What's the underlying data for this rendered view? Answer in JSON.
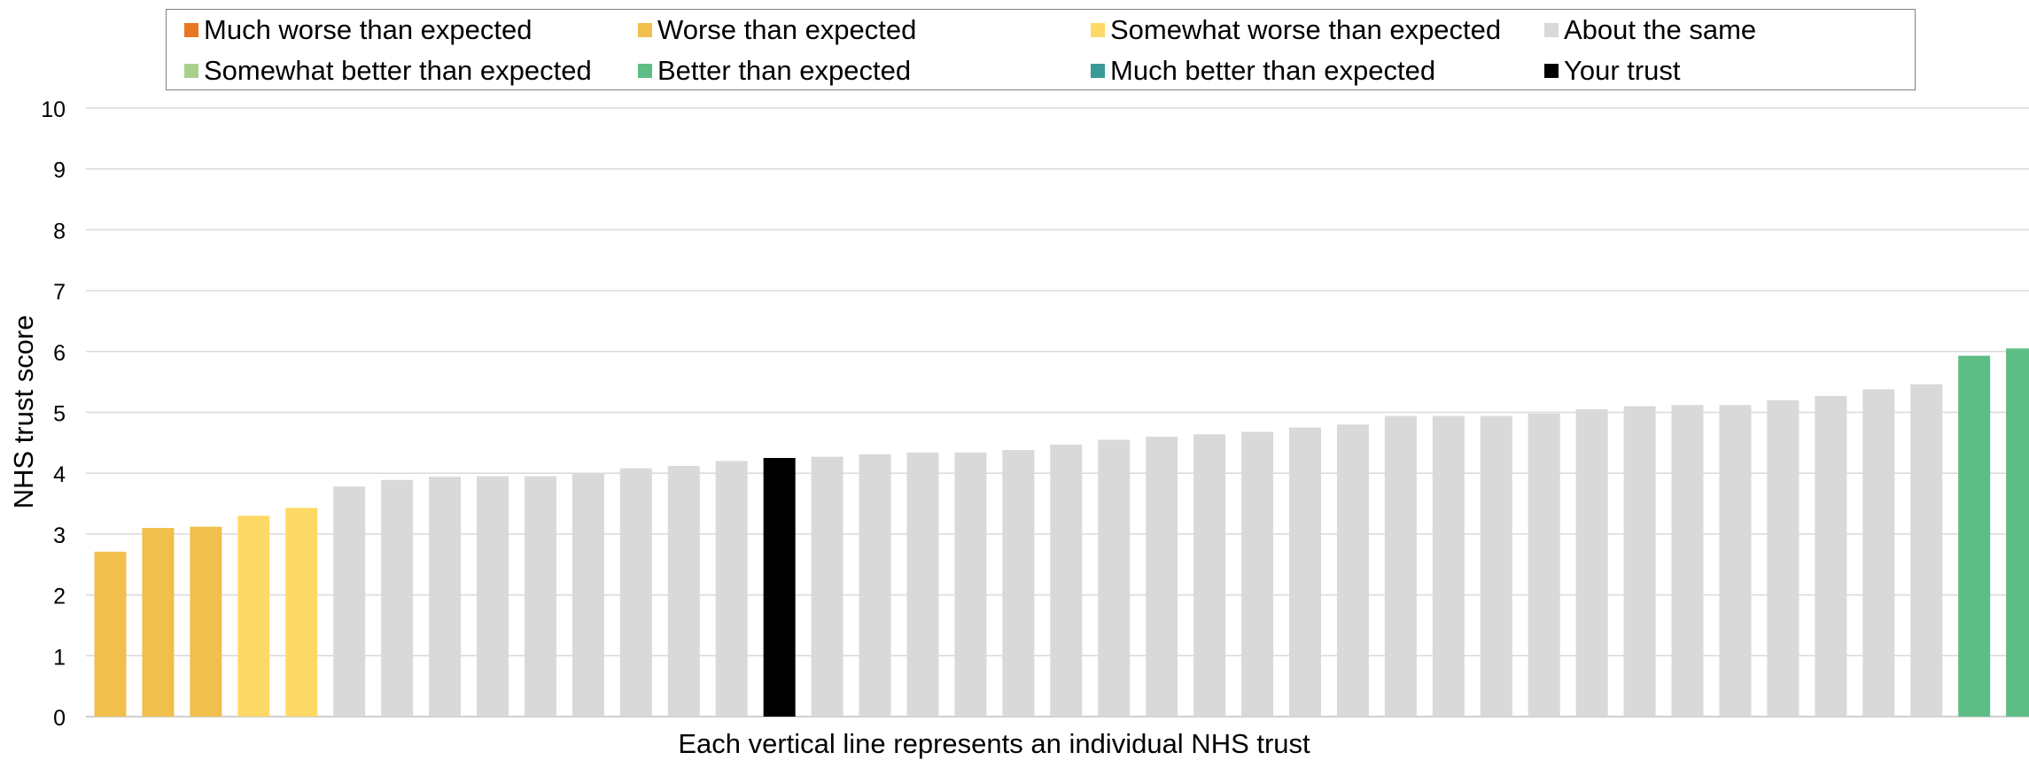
{
  "chart_data": {
    "type": "bar",
    "xlabel": "Each vertical line represents an individual NHS trust",
    "ylabel": "NHS trust score",
    "ylim": [
      0,
      10
    ],
    "yticks": [
      0,
      1,
      2,
      3,
      4,
      5,
      6,
      7,
      8,
      9,
      10
    ],
    "grid": true,
    "legend_position": "top",
    "legend": [
      {
        "key": "much_worse",
        "label": "Much worse than expected",
        "color": "#E87722"
      },
      {
        "key": "worse",
        "label": "Worse than expected",
        "color": "#F0BF4C"
      },
      {
        "key": "somewhat_worse",
        "label": "Somewhat worse than expected",
        "color": "#FFD966"
      },
      {
        "key": "same",
        "label": "About the same",
        "color": "#D9D9D9"
      },
      {
        "key": "somewhat_better",
        "label": "Somewhat better than expected",
        "color": "#A9D18E"
      },
      {
        "key": "better",
        "label": "Better than expected",
        "color": "#5EBD84"
      },
      {
        "key": "much_better",
        "label": "Much better than expected",
        "color": "#3A9A96"
      },
      {
        "key": "your_trust",
        "label": "Your trust",
        "color": "#000000"
      }
    ],
    "values": [
      2.71,
      3.1,
      3.12,
      3.3,
      3.43,
      3.78,
      3.89,
      3.94,
      3.95,
      3.95,
      4.0,
      4.08,
      4.12,
      4.2,
      4.25,
      4.27,
      4.31,
      4.34,
      4.34,
      4.38,
      4.47,
      4.55,
      4.6,
      4.64,
      4.68,
      4.75,
      4.8,
      4.94,
      4.94,
      4.94,
      4.98,
      5.05,
      5.1,
      5.12,
      5.12,
      5.2,
      5.27,
      5.38,
      5.46,
      5.93,
      6.05
    ],
    "bar_categories": [
      "worse",
      "worse",
      "worse",
      "somewhat_worse",
      "somewhat_worse",
      "same",
      "same",
      "same",
      "same",
      "same",
      "same",
      "same",
      "same",
      "same",
      "your_trust",
      "same",
      "same",
      "same",
      "same",
      "same",
      "same",
      "same",
      "same",
      "same",
      "same",
      "same",
      "same",
      "same",
      "same",
      "same",
      "same",
      "same",
      "same",
      "same",
      "same",
      "same",
      "same",
      "same",
      "same",
      "better",
      "better"
    ]
  }
}
